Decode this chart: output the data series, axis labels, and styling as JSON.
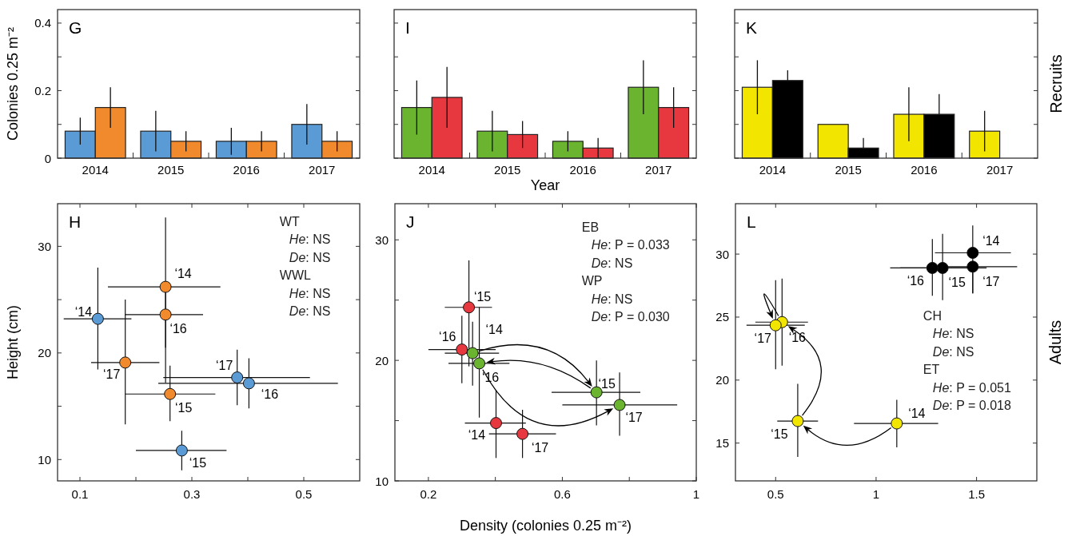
{
  "chart_data": [
    {
      "type": "bar",
      "title": "G",
      "ylabel": "Colonies 0.25 m⁻²",
      "categories": [
        "2014",
        "2015",
        "2016",
        "2017"
      ],
      "series": [
        {
          "color": "#5b9bd5",
          "values": [
            0.08,
            0.08,
            0.05,
            0.1
          ],
          "errors": [
            [
              0.04,
              0.12
            ],
            [
              0.02,
              0.14
            ],
            [
              0.01,
              0.09
            ],
            [
              0.04,
              0.16
            ]
          ]
        },
        {
          "color": "#f08a2c",
          "values": [
            0.15,
            0.05,
            0.05,
            0.05
          ],
          "errors": [
            [
              0.09,
              0.21
            ],
            [
              0.02,
              0.08
            ],
            [
              0.02,
              0.08
            ],
            [
              0.02,
              0.08
            ]
          ]
        }
      ],
      "ylim": [
        0,
        0.44
      ],
      "yticks": [
        0,
        {
          "value": 0.1,
          "label": null
        },
        0.2,
        {
          "value": 0.3,
          "label": null
        },
        0.4
      ]
    },
    {
      "type": "bar",
      "title": "I",
      "xlabel": "Year",
      "categories": [
        "2014",
        "2015",
        "2016",
        "2017"
      ],
      "series": [
        {
          "color": "#6ab42f",
          "values": [
            0.15,
            0.08,
            0.05,
            0.21
          ],
          "errors": [
            [
              0.07,
              0.23
            ],
            [
              0.02,
              0.14
            ],
            [
              0.02,
              0.08
            ],
            [
              0.13,
              0.29
            ]
          ]
        },
        {
          "color": "#e8383f",
          "values": [
            0.18,
            0.07,
            0.03,
            0.15
          ],
          "errors": [
            [
              0.09,
              0.27
            ],
            [
              0.03,
              0.11
            ],
            [
              0,
              0.06
            ],
            [
              0.09,
              0.21
            ]
          ]
        }
      ],
      "ylim": [
        0,
        0.44
      ],
      "yticks": [
        0,
        {
          "value": 0.1,
          "label": null
        },
        0.2,
        {
          "value": 0.3,
          "label": null
        },
        0.4
      ],
      "tick_labels": "x"
    },
    {
      "type": "bar",
      "title": "K",
      "y2label": "Recruits",
      "categories": [
        "2014",
        "2015",
        "2016",
        "2017"
      ],
      "series": [
        {
          "color": "#f2e500",
          "values": [
            0.21,
            0.1,
            0.13,
            0.08
          ],
          "errors": [
            [
              0.13,
              0.29
            ],
            null,
            [
              0.05,
              0.21
            ],
            [
              0.02,
              0.14
            ]
          ]
        },
        {
          "color": "#000000",
          "values": [
            0.23,
            0.03,
            0.13,
            null
          ],
          "errors": [
            [
              0.23,
              0.26
            ],
            [
              0.03,
              0.06
            ],
            [
              0.13,
              0.19
            ],
            null
          ]
        }
      ],
      "ylim": [
        0,
        0.44
      ],
      "yticks": [
        0,
        {
          "value": 0.1,
          "label": null
        },
        0.2,
        {
          "value": 0.3,
          "label": null
        },
        0.4
      ],
      "tick_labels": "x"
    },
    {
      "type": "scatter",
      "title": "H",
      "ylabel": "Height (cm)",
      "marker": "circle",
      "series": [
        {
          "color": "#5b9bd5",
          "x": [
            0.132,
            0.282,
            0.402,
            0.381
          ],
          "values": [
            23.2,
            10.85,
            17.15,
            17.7
          ],
          "xerrors": [
            [
              0.071,
              0.192
            ],
            [
              0.2,
              0.362
            ],
            [
              0.24,
              0.561
            ],
            [
              0.249,
              0.511
            ]
          ],
          "errors": [
            [
              18.45,
              28
            ],
            [
              9,
              12.7
            ],
            [
              14.8,
              19.5
            ],
            [
              15.1,
              20.3
            ]
          ]
        },
        {
          "color": "#f08a2c",
          "x": [
            0.253,
            0.261,
            0.253,
            0.181
          ],
          "values": [
            26.2,
            16.15,
            23.6,
            19.1
          ],
          "xerrors": [
            [
              0.15,
              0.351
            ],
            [
              0.181,
              0.342
            ],
            [
              0.18,
              0.32
            ],
            [
              0.12,
              0.242
            ]
          ],
          "errors": [
            [
              20.5,
              32.7
            ],
            [
              13.6,
              18.8
            ],
            [
              17.2,
              26
            ],
            [
              13.3,
              25
            ]
          ]
        }
      ],
      "xlim": [
        0.06,
        0.6
      ],
      "xticks": [
        0.1,
        {
          "value": 0.2,
          "label": null
        },
        0.3,
        {
          "value": 0.4,
          "label": null
        },
        0.5
      ],
      "ylim": [
        8,
        34
      ],
      "yticks": [
        10,
        {
          "value": 15,
          "label": null
        },
        20,
        {
          "value": 25,
          "label": null
        },
        30
      ],
      "annotations": [
        "WT",
        "He: NS",
        "De: NS",
        "WWL",
        "He: NS",
        "De: NS",
        {
          "text": "‘14",
          "x": 0.132,
          "y": 23.2
        },
        {
          "text": "‘15",
          "x": 0.282,
          "y": 10.85
        },
        {
          "text": "‘16",
          "x": 0.402,
          "y": 17.15
        },
        {
          "text": "‘17",
          "x": 0.381,
          "y": 17.7
        },
        {
          "text": "‘14",
          "x": 0.253,
          "y": 26.2
        },
        {
          "text": "‘15",
          "x": 0.261,
          "y": 16.15
        },
        {
          "text": "‘16",
          "x": 0.253,
          "y": 23.6
        },
        {
          "text": "‘17",
          "x": 0.181,
          "y": 19.1
        }
      ]
    },
    {
      "type": "scatter",
      "title": "J",
      "xlabel": "Density (colonies 0.25 m⁻²)",
      "marker": "circle",
      "series": [
        {
          "color": "#e8383f",
          "x": [
            0.402,
            0.321,
            0.3,
            0.481
          ],
          "values": [
            14.8,
            24.4,
            20.9,
            13.9
          ],
          "xerrors": [
            [
              0.309,
              0.491
            ],
            [
              0.249,
              0.39
            ],
            [
              0.2,
              0.401
            ],
            [
              0.381,
              0.581
            ]
          ],
          "errors": [
            [
              11.9,
              17.55
            ],
            [
              19.5,
              28.3
            ],
            [
              18.1,
              23.7
            ],
            [
              11.9,
              15.9
            ]
          ]
        },
        {
          "color": "#6ab42f",
          "x": [
            0.332,
            0.702,
            0.352,
            0.771
          ],
          "values": [
            20.6,
            17.35,
            19.75,
            16.3
          ],
          "xerrors": [
            [
              0.249,
              0.411
            ],
            [
              0.568,
              0.833
            ],
            [
              0.26,
              0.442
            ],
            [
              0.6,
              0.943
            ]
          ],
          "errors": [
            [
              17.9,
              23.2
            ],
            [
              14.6,
              20
            ],
            [
              15.25,
              24.4
            ],
            [
              13.75,
              19
            ]
          ]
        }
      ],
      "xlim": [
        0.1,
        1
      ],
      "xticks": [
        0.2,
        {
          "value": 0.4,
          "label": null
        },
        0.6,
        {
          "value": 0.8,
          "label": null
        },
        1
      ],
      "ylim": [
        10,
        33
      ],
      "yticks": [
        10,
        {
          "value": 15,
          "label": null
        },
        20,
        {
          "value": 25,
          "label": null
        },
        30
      ],
      "annotations": [
        "EB",
        "He: P = 0.033",
        "De: NS",
        "WP",
        "He: NS",
        "De: P = 0.030",
        {
          "text": "‘14",
          "x": 0.402,
          "y": 14.8
        },
        {
          "text": "‘15",
          "x": 0.321,
          "y": 24.4
        },
        {
          "text": "‘16",
          "x": 0.3,
          "y": 20.9
        },
        {
          "text": "‘17",
          "x": 0.481,
          "y": 13.9
        },
        {
          "text": "‘14",
          "x": 0.332,
          "y": 20.6
        },
        {
          "text": "‘15",
          "x": 0.702,
          "y": 17.35
        },
        {
          "text": "‘16",
          "x": 0.352,
          "y": 19.75
        },
        {
          "text": "‘17",
          "x": 0.771,
          "y": 16.3
        }
      ]
    },
    {
      "type": "scatter",
      "title": "L",
      "y2label": "Adults",
      "marker": "circle",
      "series": [
        {
          "color": "#f2e500",
          "x": [
            1.103,
            0.61,
            0.532,
            0.5
          ],
          "values": [
            16.56,
            16.75,
            24.6,
            24.35
          ],
          "xerrors": [
            [
              0.89,
              1.309
            ],
            [
              0.508,
              0.711
            ],
            [
              0.399,
              0.661
            ],
            [
              0.355,
              0.645
            ]
          ],
          "errors": [
            [
              14.66,
              18.44
            ],
            [
              13.9,
              19.7
            ],
            [
              21.14,
              28.06
            ],
            [
              20.86,
              27.93
            ]
          ]
        },
        {
          "color": "#000000",
          "x": [
            1.481,
            1.331,
            1.28,
            1.481
          ],
          "values": [
            30.1,
            28.9,
            28.9,
            29
          ],
          "xerrors": [
            [
              1.293,
              1.671
            ],
            [
              1.12,
              1.55
            ],
            [
              1.07,
              1.49
            ],
            [
              1.335,
              1.702
            ]
          ],
          "errors": [
            [
              26.88,
              32.28
            ],
            [
              26.35,
              31.6
            ],
            [
              26.7,
              31.2
            ],
            [
              26.88,
              29
            ]
          ]
        }
      ],
      "xlim": [
        0.3,
        1.8
      ],
      "xticks": [
        0.5,
        1,
        1.5
      ],
      "ylim": [
        12,
        34
      ],
      "yticks": [
        15,
        20,
        25,
        30
      ],
      "annotations": [
        "CH",
        "He: NS",
        "De: NS",
        "ET",
        "He: P = 0.051",
        "De: P = 0.018",
        {
          "text": "‘14",
          "x": 1.103,
          "y": 16.56
        },
        {
          "text": "‘15",
          "x": 0.61,
          "y": 16.75
        },
        {
          "text": "‘16",
          "x": 0.532,
          "y": 24.6
        },
        {
          "text": "‘17",
          "x": 0.5,
          "y": 24.35
        },
        {
          "text": "‘14",
          "x": 1.481,
          "y": 30.1
        },
        {
          "text": "‘15",
          "x": 1.331,
          "y": 28.9
        },
        {
          "text": "‘16",
          "x": 1.28,
          "y": 28.9
        },
        {
          "text": "‘17",
          "x": 1.481,
          "y": 29
        }
      ]
    }
  ]
}
